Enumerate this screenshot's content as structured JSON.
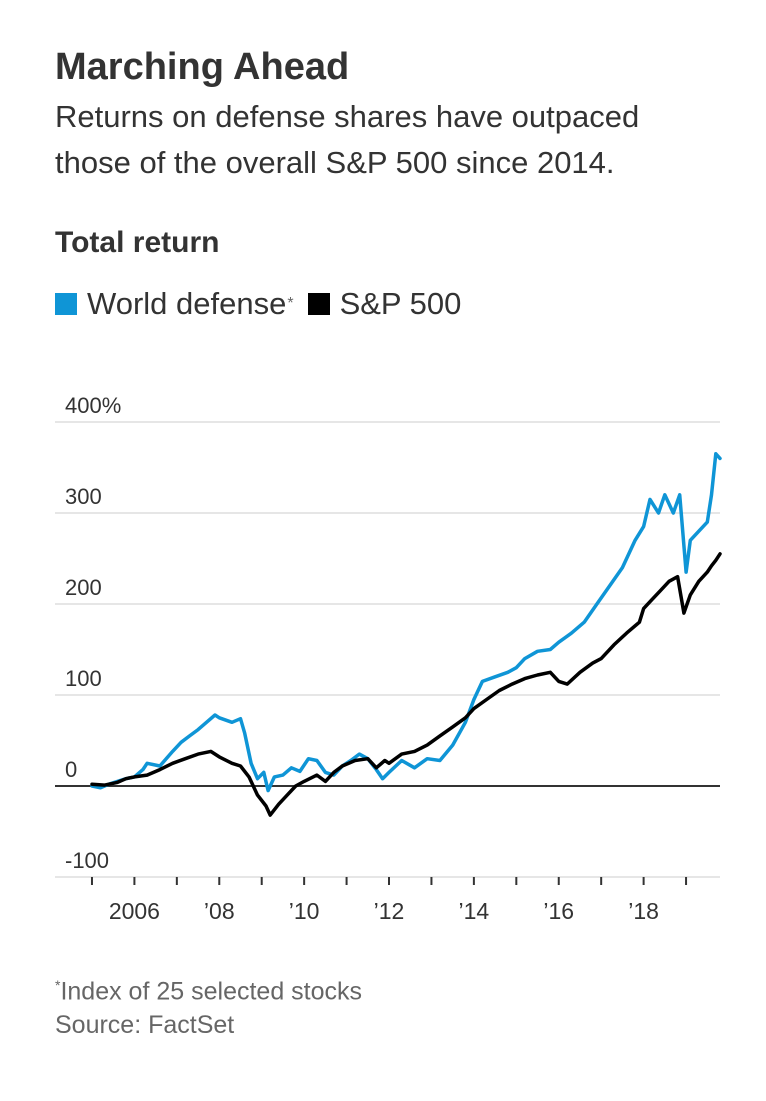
{
  "header": {
    "title": "Marching Ahead",
    "subtitle": "Returns on defense shares have outpaced those of the overall S&P 500 since 2014.",
    "chart_label": "Total return"
  },
  "legend": {
    "items": [
      {
        "label": "World defense",
        "marker": "*",
        "color": "#0f95d6"
      },
      {
        "label": "S&P 500",
        "color": "#000000"
      }
    ]
  },
  "notes": {
    "footnote_marker": "*",
    "footnote": "Index of 25 selected stocks",
    "source": "Source: FactSet"
  },
  "chart_data": {
    "type": "line",
    "ylabel": "Total return",
    "ylim": [
      -100,
      400
    ],
    "xlim": [
      2004.6,
      2019.8
    ],
    "yticks": [
      -100,
      0,
      100,
      200,
      300,
      400
    ],
    "ytick_labels": [
      "-100",
      "0",
      "100",
      "200",
      "300",
      "400%"
    ],
    "xticks": [
      2006,
      2008,
      2010,
      2012,
      2014,
      2016,
      2018
    ],
    "xtick_labels": [
      "2006",
      "’08",
      "’10",
      "’12",
      "’14",
      "’16",
      "’18"
    ],
    "grid": true,
    "legend_position": "top-left",
    "series": [
      {
        "name": "World defense",
        "color": "#0f95d6",
        "x": [
          2005.0,
          2005.2,
          2005.4,
          2005.6,
          2005.8,
          2006.0,
          2006.2,
          2006.3,
          2006.6,
          2006.9,
          2007.1,
          2007.3,
          2007.5,
          2007.7,
          2007.9,
          2008.0,
          2008.3,
          2008.5,
          2008.6,
          2008.75,
          2008.9,
          2009.05,
          2009.15,
          2009.3,
          2009.5,
          2009.7,
          2009.9,
          2010.1,
          2010.3,
          2010.5,
          2010.7,
          2010.9,
          2011.1,
          2011.3,
          2011.5,
          2011.7,
          2011.85,
          2012.0,
          2012.3,
          2012.6,
          2012.9,
          2013.2,
          2013.5,
          2013.8,
          2014.0,
          2014.2,
          2014.5,
          2014.8,
          2015.0,
          2015.2,
          2015.5,
          2015.8,
          2016.0,
          2016.3,
          2016.6,
          2016.9,
          2017.2,
          2017.5,
          2017.8,
          2018.0,
          2018.15,
          2018.35,
          2018.5,
          2018.7,
          2018.85,
          2019.0,
          2019.1,
          2019.3,
          2019.5,
          2019.6,
          2019.7,
          2019.8
        ],
        "values": [
          0,
          -2,
          2,
          5,
          8,
          10,
          18,
          25,
          22,
          38,
          48,
          55,
          62,
          70,
          78,
          75,
          70,
          74,
          58,
          25,
          8,
          15,
          -5,
          10,
          12,
          20,
          16,
          30,
          28,
          15,
          12,
          22,
          28,
          35,
          30,
          18,
          8,
          15,
          28,
          20,
          30,
          28,
          45,
          70,
          95,
          115,
          120,
          125,
          130,
          140,
          148,
          150,
          158,
          168,
          180,
          200,
          220,
          240,
          270,
          285,
          315,
          300,
          320,
          300,
          320,
          235,
          270,
          280,
          290,
          320,
          365,
          360
        ]
      },
      {
        "name": "S&P 500",
        "color": "#000000",
        "x": [
          2005.0,
          2005.3,
          2005.6,
          2005.8,
          2006.0,
          2006.3,
          2006.6,
          2006.9,
          2007.2,
          2007.5,
          2007.8,
          2008.0,
          2008.3,
          2008.5,
          2008.7,
          2008.9,
          2009.1,
          2009.2,
          2009.4,
          2009.6,
          2009.8,
          2010.0,
          2010.3,
          2010.5,
          2010.7,
          2010.9,
          2011.2,
          2011.5,
          2011.7,
          2011.9,
          2012.0,
          2012.3,
          2012.6,
          2012.9,
          2013.2,
          2013.5,
          2013.8,
          2014.0,
          2014.3,
          2014.6,
          2014.9,
          2015.2,
          2015.5,
          2015.8,
          2016.0,
          2016.2,
          2016.5,
          2016.8,
          2017.0,
          2017.3,
          2017.6,
          2017.9,
          2018.0,
          2018.2,
          2018.4,
          2018.6,
          2018.8,
          2018.95,
          2019.1,
          2019.3,
          2019.5,
          2019.6,
          2019.7,
          2019.8
        ],
        "values": [
          2,
          1,
          4,
          8,
          10,
          12,
          18,
          25,
          30,
          35,
          38,
          32,
          25,
          22,
          10,
          -10,
          -22,
          -32,
          -20,
          -10,
          0,
          5,
          12,
          5,
          15,
          22,
          28,
          30,
          20,
          28,
          25,
          35,
          38,
          45,
          55,
          65,
          75,
          85,
          95,
          105,
          112,
          118,
          122,
          125,
          115,
          112,
          125,
          135,
          140,
          155,
          168,
          180,
          195,
          205,
          215,
          225,
          230,
          190,
          210,
          225,
          235,
          242,
          248,
          255
        ]
      }
    ]
  }
}
